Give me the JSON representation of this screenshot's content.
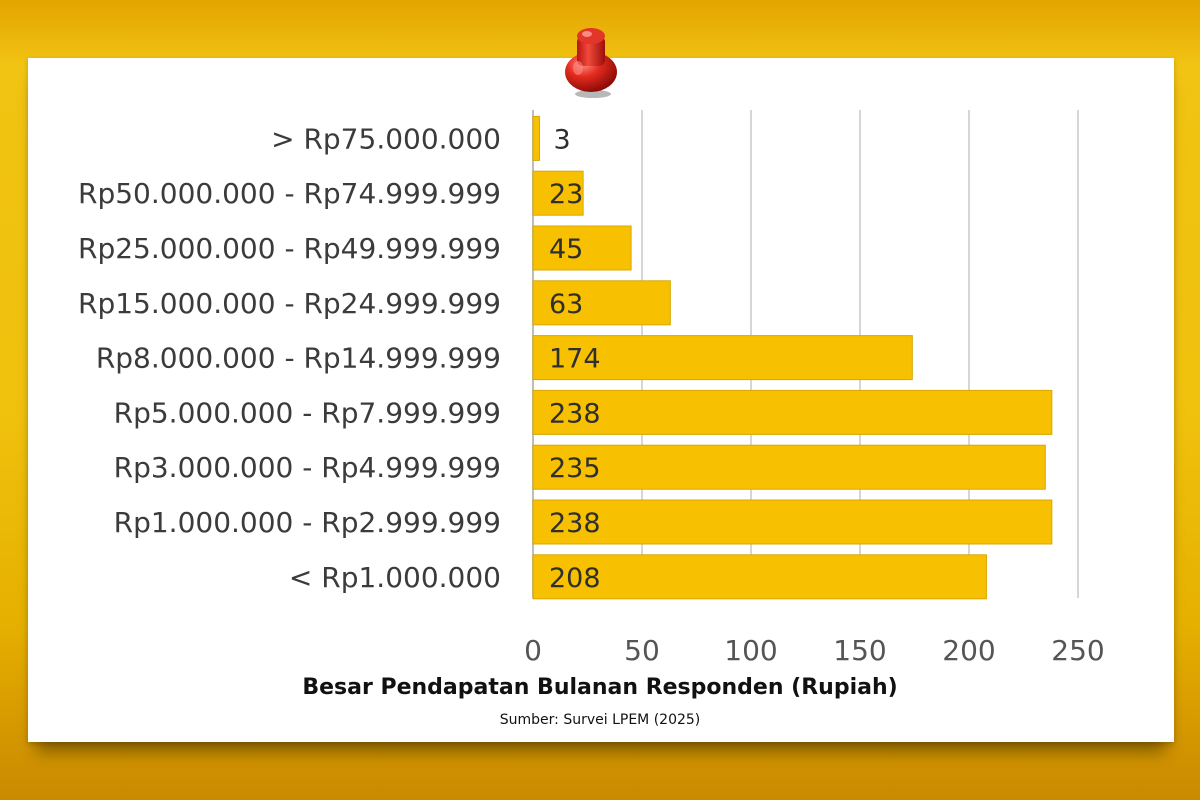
{
  "chart_data": {
    "type": "bar",
    "orientation": "horizontal",
    "categories": [
      "> Rp75.000.000",
      "Rp50.000.000 - Rp74.999.999",
      "Rp25.000.000 - Rp49.999.999",
      "Rp15.000.000 - Rp24.999.999",
      "Rp8.000.000 - Rp14.999.999",
      "Rp5.000.000 - Rp7.999.999",
      "Rp3.000.000 - Rp4.999.999",
      "Rp1.000.000 - Rp2.999.999",
      "< Rp1.000.000"
    ],
    "values": [
      3,
      23,
      45,
      63,
      174,
      238,
      235,
      238,
      208
    ],
    "xlabel": "Besar Pendapatan Bulanan Responden (Rupiah)",
    "source": "Sumber: Survei LPEM (2025)",
    "xlim": [
      0,
      250
    ],
    "xticks": [
      0,
      50,
      100,
      150,
      200,
      250
    ],
    "grid": "vertical",
    "bar_color": "#f7c000"
  }
}
